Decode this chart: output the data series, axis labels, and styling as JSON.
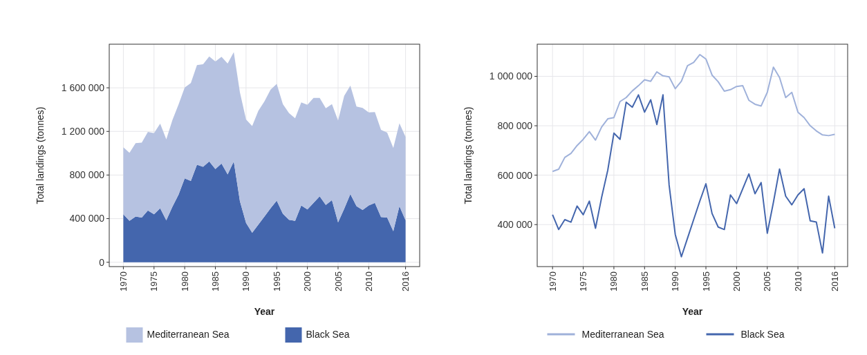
{
  "chart_data": [
    {
      "type": "area",
      "stacked": true,
      "xlabel": "Year",
      "ylabel": "Total landings (tonnes)",
      "grid": true,
      "legend": "bottom",
      "x": [
        1970,
        1971,
        1972,
        1973,
        1974,
        1975,
        1976,
        1977,
        1978,
        1979,
        1980,
        1981,
        1982,
        1983,
        1984,
        1985,
        1986,
        1987,
        1988,
        1989,
        1990,
        1991,
        1992,
        1993,
        1994,
        1995,
        1996,
        1997,
        1998,
        1999,
        2000,
        2001,
        2002,
        2003,
        2004,
        2005,
        2006,
        2007,
        2008,
        2009,
        2010,
        2011,
        2012,
        2013,
        2014,
        2015,
        2016
      ],
      "xlim": [
        1967.7,
        2018.3
      ],
      "xticks": [
        1970,
        1975,
        1980,
        1985,
        1990,
        1995,
        2000,
        2005,
        2010,
        2016
      ],
      "ylim": [
        -40000,
        2000000
      ],
      "yticks": [
        0,
        {
          "value": 400000,
          "label": "400 000"
        },
        {
          "value": 800000,
          "label": "800 000"
        },
        {
          "value": 1200000,
          "label": "1 200 000"
        },
        {
          "value": 1600000,
          "label": "1 600 000"
        }
      ],
      "series": [
        {
          "name": "Black Sea",
          "color": "#4466ad",
          "values": [
            440000,
            380000,
            420000,
            410000,
            475000,
            440000,
            495000,
            385000,
            510000,
            620000,
            770000,
            745000,
            895000,
            875000,
            925000,
            855000,
            905000,
            805000,
            925000,
            560000,
            360000,
            270000,
            345000,
            420000,
            495000,
            565000,
            445000,
            390000,
            380000,
            520000,
            485000,
            545000,
            605000,
            525000,
            570000,
            365000,
            490000,
            625000,
            515000,
            480000,
            520000,
            545000,
            415000,
            410000,
            285000,
            515000,
            385000
          ]
        },
        {
          "name": "Mediterranean Sea",
          "color": "#b6c2e1",
          "values": [
            615000,
            624000,
            672000,
            688000,
            720000,
            745000,
            776000,
            742000,
            795000,
            828000,
            833000,
            898000,
            914000,
            941000,
            962000,
            986000,
            980000,
            1018000,
            1002000,
            998000,
            950000,
            980000,
            1043000,
            1056000,
            1088000,
            1070000,
            1005000,
            978000,
            940000,
            946000,
            959000,
            962000,
            903000,
            887000,
            880000,
            935000,
            1037000,
            995000,
            914000,
            935000,
            855000,
            833000,
            800000,
            779000,
            763000,
            760000,
            765000
          ]
        }
      ]
    },
    {
      "type": "line",
      "xlabel": "Year",
      "ylabel": "Total landings (tonnes)",
      "grid": true,
      "legend": "bottom",
      "x": [
        1970,
        1971,
        1972,
        1973,
        1974,
        1975,
        1976,
        1977,
        1978,
        1979,
        1980,
        1981,
        1982,
        1983,
        1984,
        1985,
        1986,
        1987,
        1988,
        1989,
        1990,
        1991,
        1992,
        1993,
        1994,
        1995,
        1996,
        1997,
        1998,
        1999,
        2000,
        2001,
        2002,
        2003,
        2004,
        2005,
        2006,
        2007,
        2008,
        2009,
        2010,
        2011,
        2012,
        2013,
        2014,
        2015,
        2016
      ],
      "xlim": [
        1967.5,
        2018.1
      ],
      "xticks": [
        1970,
        1975,
        1980,
        1985,
        1990,
        1995,
        2000,
        2005,
        2010,
        2016
      ],
      "ylim": [
        230000,
        1130000
      ],
      "yticks": [
        {
          "value": 400000,
          "label": "400 000"
        },
        {
          "value": 600000,
          "label": "600 000"
        },
        {
          "value": 800000,
          "label": "800 000"
        },
        {
          "value": 1000000,
          "label": "1 000 000"
        }
      ],
      "series": [
        {
          "name": "Mediterranean Sea",
          "color": "#9fb1da",
          "values": [
            615000,
            624000,
            672000,
            688000,
            720000,
            745000,
            776000,
            742000,
            795000,
            828000,
            833000,
            898000,
            914000,
            941000,
            962000,
            986000,
            980000,
            1018000,
            1002000,
            998000,
            950000,
            980000,
            1043000,
            1056000,
            1088000,
            1070000,
            1005000,
            978000,
            940000,
            946000,
            959000,
            962000,
            903000,
            887000,
            880000,
            935000,
            1037000,
            995000,
            914000,
            935000,
            855000,
            833000,
            800000,
            779000,
            763000,
            760000,
            765000
          ]
        },
        {
          "name": "Black Sea",
          "color": "#4466ad",
          "values": [
            440000,
            380000,
            420000,
            410000,
            475000,
            440000,
            495000,
            385000,
            510000,
            620000,
            770000,
            745000,
            895000,
            875000,
            925000,
            855000,
            905000,
            805000,
            925000,
            560000,
            360000,
            270000,
            345000,
            420000,
            495000,
            565000,
            445000,
            390000,
            380000,
            520000,
            485000,
            545000,
            605000,
            525000,
            570000,
            365000,
            490000,
            625000,
            515000,
            480000,
            520000,
            545000,
            415000,
            410000,
            285000,
            515000,
            385000
          ]
        }
      ]
    }
  ]
}
